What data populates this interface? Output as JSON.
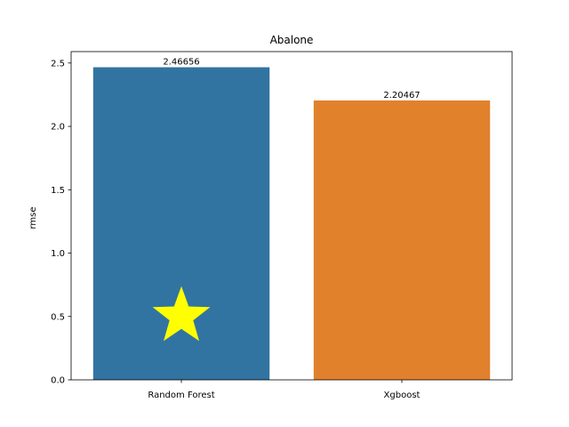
{
  "chart_data": {
    "type": "bar",
    "title": "Abalone",
    "xlabel": "",
    "ylabel": "rmse",
    "categories": [
      "Random Forest",
      "Xgboost"
    ],
    "values": [
      2.46656,
      2.20467
    ],
    "data_labels": [
      "2.46656",
      "2.20467"
    ],
    "bar_colors": [
      "#3274a1",
      "#e1812c"
    ],
    "ylim": [
      0,
      2.59
    ],
    "yticks": [
      0.0,
      0.5,
      1.0,
      1.5,
      2.0,
      2.5
    ],
    "ytick_labels": [
      "0.0",
      "0.5",
      "1.0",
      "1.5",
      "2.0",
      "2.5"
    ],
    "grid": false,
    "legend": "none",
    "marker": {
      "shape": "star",
      "color": "#ffff00",
      "category": "Random Forest",
      "y": 0.5
    }
  }
}
